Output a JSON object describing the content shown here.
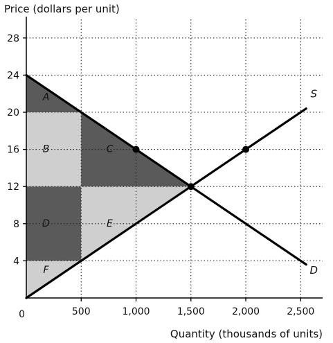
{
  "chart_data": {
    "type": "line",
    "title": "",
    "ylabel": "Price (dollars per unit)",
    "xlabel": "Quantity (thousands of units)",
    "xlim": [
      0,
      2700
    ],
    "ylim": [
      0,
      30
    ],
    "x_ticks": [
      500,
      1000,
      1500,
      2000,
      2500
    ],
    "x_tick_labels": [
      "500",
      "1,000",
      "1,500",
      "2,000",
      "2,500"
    ],
    "y_ticks": [
      4,
      8,
      12,
      16,
      20,
      24,
      28
    ],
    "y_tick_labels": [
      "4",
      "8",
      "12",
      "16",
      "20",
      "24",
      "28"
    ],
    "origin_label": "0",
    "grid": "dotted",
    "series": [
      {
        "name": "S",
        "points": [
          [
            0,
            0
          ],
          [
            2550,
            20.4
          ]
        ]
      },
      {
        "name": "D",
        "points": [
          [
            0,
            24
          ],
          [
            2550,
            3.6
          ]
        ]
      }
    ],
    "markers": [
      {
        "x": 1000,
        "y": 16
      },
      {
        "x": 1500,
        "y": 12
      },
      {
        "x": 2000,
        "y": 16
      }
    ],
    "regions": [
      {
        "label": "A",
        "shade": "dark",
        "polygon": [
          [
            0,
            24
          ],
          [
            500,
            20
          ],
          [
            0,
            20
          ]
        ],
        "label_at": [
          180,
          21.3
        ]
      },
      {
        "label": "B",
        "shade": "light",
        "polygon": [
          [
            0,
            20
          ],
          [
            500,
            20
          ],
          [
            500,
            12
          ],
          [
            0,
            12
          ]
        ],
        "label_at": [
          180,
          15.7
        ]
      },
      {
        "label": "C",
        "shade": "dark",
        "polygon": [
          [
            500,
            20
          ],
          [
            1500,
            12
          ],
          [
            500,
            12
          ]
        ],
        "label_at": [
          760,
          15.7
        ]
      },
      {
        "label": "D",
        "shade": "dark",
        "polygon": [
          [
            0,
            12
          ],
          [
            500,
            12
          ],
          [
            500,
            4
          ],
          [
            0,
            4
          ]
        ],
        "label_at": [
          180,
          7.7
        ]
      },
      {
        "label": "E",
        "shade": "light",
        "polygon": [
          [
            500,
            12
          ],
          [
            1500,
            12
          ],
          [
            500,
            4
          ]
        ],
        "label_at": [
          760,
          7.7
        ]
      },
      {
        "label": "F",
        "shade": "light",
        "polygon": [
          [
            0,
            4
          ],
          [
            500,
            4
          ],
          [
            0,
            0
          ]
        ],
        "label_at": [
          180,
          2.7
        ]
      }
    ],
    "curve_labels": [
      {
        "text": "S",
        "at": [
          2620,
          21.6
        ]
      },
      {
        "text": "D",
        "at": [
          2620,
          2.6
        ]
      }
    ],
    "colors": {
      "dark": "#5a5a5a",
      "light": "#cfcfcf",
      "line": "#000000"
    }
  }
}
